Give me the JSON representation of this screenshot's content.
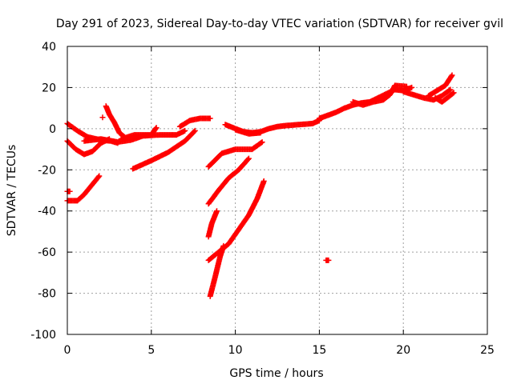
{
  "chart_data": {
    "type": "scatter",
    "title": "Day 291 of 2023, Sidereal Day-to-day VTEC variation (SDTVAR) for receiver gvil",
    "xlabel": "GPS time / hours",
    "ylabel": "SDTVAR / TECUs",
    "xlim": [
      0,
      25
    ],
    "ylim": [
      -100,
      40
    ],
    "xticks": [
      0,
      5,
      10,
      15,
      20,
      25
    ],
    "yticks": [
      -100,
      -80,
      -60,
      -40,
      -20,
      0,
      20,
      40
    ],
    "xtick_labels": [
      "0",
      "5",
      "10",
      "15",
      "20",
      "25"
    ],
    "ytick_labels": [
      "-100",
      "-80",
      "-60",
      "-40",
      "-20",
      "0",
      "20",
      "40"
    ],
    "grid": true,
    "marker": "+",
    "color": "#ff0000",
    "tracks": [
      [
        [
          0.0,
          2.5
        ],
        [
          0.6,
          -1
        ],
        [
          1.2,
          -4
        ],
        [
          2.0,
          -5.5
        ],
        [
          2.6,
          -6
        ],
        [
          3.0,
          -7
        ]
      ],
      [
        [
          0.0,
          -6
        ],
        [
          0.5,
          -10
        ],
        [
          1.0,
          -12.5
        ],
        [
          1.5,
          -11
        ],
        [
          2.0,
          -7
        ],
        [
          2.5,
          -5
        ]
      ],
      [
        [
          0.0,
          -35
        ],
        [
          0.6,
          -35
        ],
        [
          1.0,
          -32
        ],
        [
          1.5,
          -27
        ],
        [
          1.9,
          -23
        ]
      ],
      [
        [
          0.0,
          -30.5
        ],
        [
          0.15,
          -30.5
        ]
      ],
      [
        [
          1.0,
          -6
        ],
        [
          2.0,
          -5
        ],
        [
          3.0,
          -6.5
        ],
        [
          3.8,
          -5.5
        ],
        [
          4.5,
          -3.5
        ],
        [
          5.5,
          -3
        ],
        [
          6.5,
          -3
        ],
        [
          7.0,
          -1
        ]
      ],
      [
        [
          2.3,
          11
        ],
        [
          2.5,
          7
        ],
        [
          2.8,
          3
        ],
        [
          3.1,
          -2
        ],
        [
          3.4,
          -4
        ]
      ],
      [
        [
          2.1,
          5.5
        ]
      ],
      [
        [
          3.9,
          -19.5
        ],
        [
          5.0,
          -15.5
        ],
        [
          6.0,
          -11.5
        ],
        [
          7.0,
          -6
        ],
        [
          7.6,
          -1
        ]
      ],
      [
        [
          3.2,
          -5
        ],
        [
          4.0,
          -3
        ],
        [
          5.0,
          -3
        ],
        [
          5.3,
          0.5
        ]
      ],
      [
        [
          6.7,
          1
        ],
        [
          7.3,
          4
        ],
        [
          7.9,
          5
        ],
        [
          8.5,
          5
        ]
      ],
      [
        [
          8.4,
          -18.5
        ],
        [
          9.2,
          -12
        ],
        [
          10.0,
          -10
        ],
        [
          11.0,
          -10
        ],
        [
          11.6,
          -6.5
        ]
      ],
      [
        [
          8.4,
          -36.5
        ],
        [
          9.0,
          -30
        ],
        [
          9.6,
          -24
        ],
        [
          10.2,
          -20
        ],
        [
          10.8,
          -14.5
        ]
      ],
      [
        [
          8.4,
          -52.5
        ],
        [
          8.6,
          -46
        ],
        [
          8.9,
          -40
        ]
      ],
      [
        [
          8.4,
          -64
        ],
        [
          9.0,
          -60
        ],
        [
          9.6,
          -56
        ],
        [
          10.2,
          -49
        ],
        [
          10.8,
          -42
        ],
        [
          11.3,
          -34
        ],
        [
          11.7,
          -25.5
        ]
      ],
      [
        [
          8.5,
          -81.5
        ],
        [
          8.8,
          -72
        ],
        [
          9.1,
          -62
        ],
        [
          9.3,
          -57
        ]
      ],
      [
        [
          9.4,
          2
        ],
        [
          10.0,
          0
        ],
        [
          10.5,
          -1.5
        ],
        [
          11.0,
          -2
        ],
        [
          11.5,
          -1.5
        ],
        [
          12.0,
          0
        ],
        [
          12.5,
          1
        ],
        [
          13.0,
          1.5
        ],
        [
          13.8,
          2
        ],
        [
          14.6,
          2.5
        ],
        [
          15.0,
          4
        ]
      ],
      [
        [
          10.0,
          -0.5
        ],
        [
          10.8,
          -2.5
        ],
        [
          11.5,
          -2
        ]
      ],
      [
        [
          15.0,
          5
        ],
        [
          15.5,
          6.5
        ],
        [
          16.0,
          8
        ],
        [
          16.5,
          10
        ],
        [
          17.0,
          11.5
        ],
        [
          17.5,
          12.5
        ],
        [
          18.0,
          13
        ],
        [
          18.5,
          15
        ],
        [
          19.0,
          17
        ],
        [
          19.5,
          19
        ],
        [
          20.0,
          18.5
        ],
        [
          20.5,
          20
        ]
      ],
      [
        [
          17.0,
          13
        ],
        [
          17.6,
          11.5
        ],
        [
          18.2,
          13
        ],
        [
          18.8,
          14
        ],
        [
          19.2,
          16.5
        ],
        [
          19.5,
          21
        ],
        [
          20.2,
          20.5
        ]
      ],
      [
        [
          20.0,
          18
        ],
        [
          20.6,
          16.5
        ],
        [
          21.2,
          15
        ],
        [
          21.8,
          14
        ],
        [
          22.3,
          16
        ],
        [
          22.8,
          19
        ]
      ],
      [
        [
          21.5,
          16
        ],
        [
          22.0,
          18.5
        ],
        [
          22.5,
          21
        ],
        [
          22.9,
          26
        ]
      ],
      [
        [
          21.9,
          15
        ],
        [
          22.3,
          13
        ],
        [
          22.7,
          15.5
        ],
        [
          23.0,
          17.5
        ]
      ],
      [
        [
          15.4,
          -64
        ],
        [
          15.55,
          -64
        ]
      ]
    ]
  }
}
